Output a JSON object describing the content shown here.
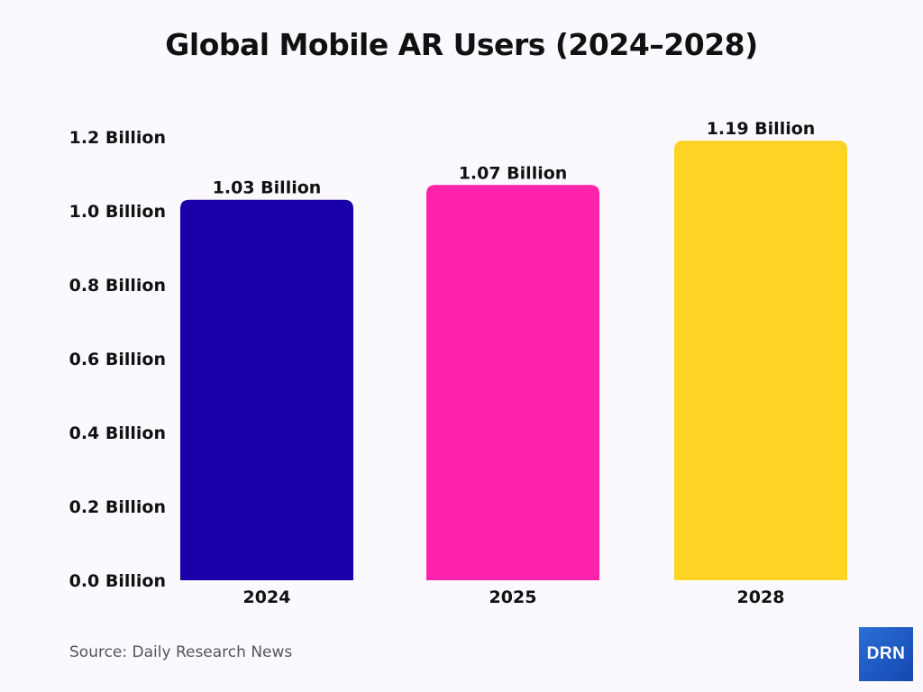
{
  "chart_data": {
    "type": "bar",
    "title": "Global Mobile AR Users (2024–2028)",
    "categories": [
      "2024",
      "2025",
      "2028"
    ],
    "values": [
      1.03,
      1.07,
      1.19
    ],
    "data_labels": [
      "1.03 Billion",
      "1.07 Billion",
      "1.19 Billion"
    ],
    "colors": [
      "#1a00a8",
      "#ff22aa",
      "#ffd324"
    ],
    "yticks": [
      0.0,
      0.2,
      0.4,
      0.6,
      0.8,
      1.0,
      1.2
    ],
    "ytick_labels": [
      "0.0 Billion",
      "0.2 Billion",
      "0.4 Billion",
      "0.6 Billion",
      "0.8 Billion",
      "1.0 Billion",
      "1.2 Billion"
    ],
    "ylim": [
      0,
      1.2
    ],
    "grid": false,
    "xlabel": "",
    "ylabel": ""
  },
  "source": "Source: Daily Research News",
  "logo_text": "DRN"
}
